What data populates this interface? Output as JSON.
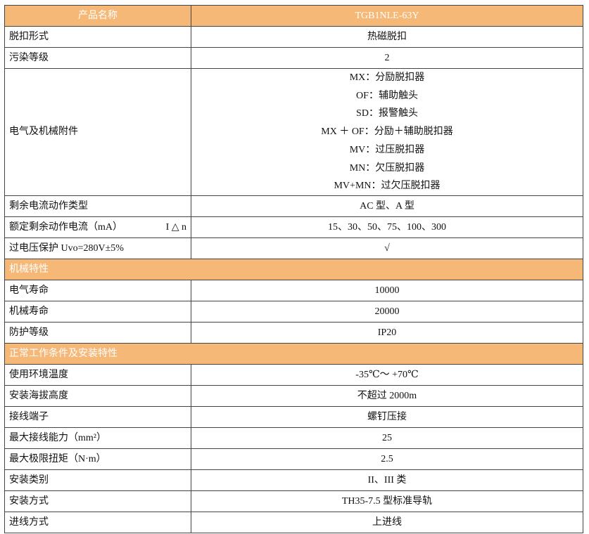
{
  "header": {
    "name_label": "产品名称",
    "model": "TGB1NLE-63Y"
  },
  "rows1": [
    {
      "label": "脱扣形式",
      "value": "热磁脱扣"
    },
    {
      "label": "污染等级",
      "value": "2"
    }
  ],
  "accessories": {
    "label": "电气及机械附件",
    "items": [
      "MX：分励脱扣器",
      "OF：辅助触头",
      "SD：报警触头",
      "MX ＋ OF：分励＋辅助脱扣器",
      "MV：过压脱扣器",
      "MN：欠压脱扣器",
      "MV+MN：过欠压脱扣器"
    ]
  },
  "rows2": [
    {
      "label": "剩余电流动作类型",
      "value": "AC 型、A 型"
    },
    {
      "label": "额定剩余动作电流（mA）",
      "symbol": "I △ n",
      "value": "15、30、50、75、100、300"
    },
    {
      "label": "过电压保护 Uvo=280V±5%",
      "value": "√"
    }
  ],
  "section_mechanical": "机械特性",
  "rows3": [
    {
      "label": "电气寿命",
      "value": "10000"
    },
    {
      "label": "机械寿命",
      "value": "20000"
    },
    {
      "label": "防护等级",
      "value": "IP20"
    }
  ],
  "section_conditions": "正常工作条件及安装特性",
  "rows4": [
    {
      "label": "使用环境温度",
      "value": "-35℃～ +70℃"
    },
    {
      "label": "安装海拔高度",
      "value": "不超过 2000m"
    },
    {
      "label": "接线端子",
      "value": "螺钉压接"
    },
    {
      "label": "最大接线能力（mm²）",
      "value": "25"
    },
    {
      "label": "最大极限扭矩（N·m）",
      "value": "2.5"
    },
    {
      "label": "安装类别",
      "value": "II、III 类"
    },
    {
      "label": "安装方式",
      "value": "TH35-7.5 型标准导轨"
    },
    {
      "label": "进线方式",
      "value": "上进线"
    }
  ],
  "colors": {
    "header_bg": "#f5b877",
    "header_text": "#ffffff",
    "border": "#444444"
  }
}
